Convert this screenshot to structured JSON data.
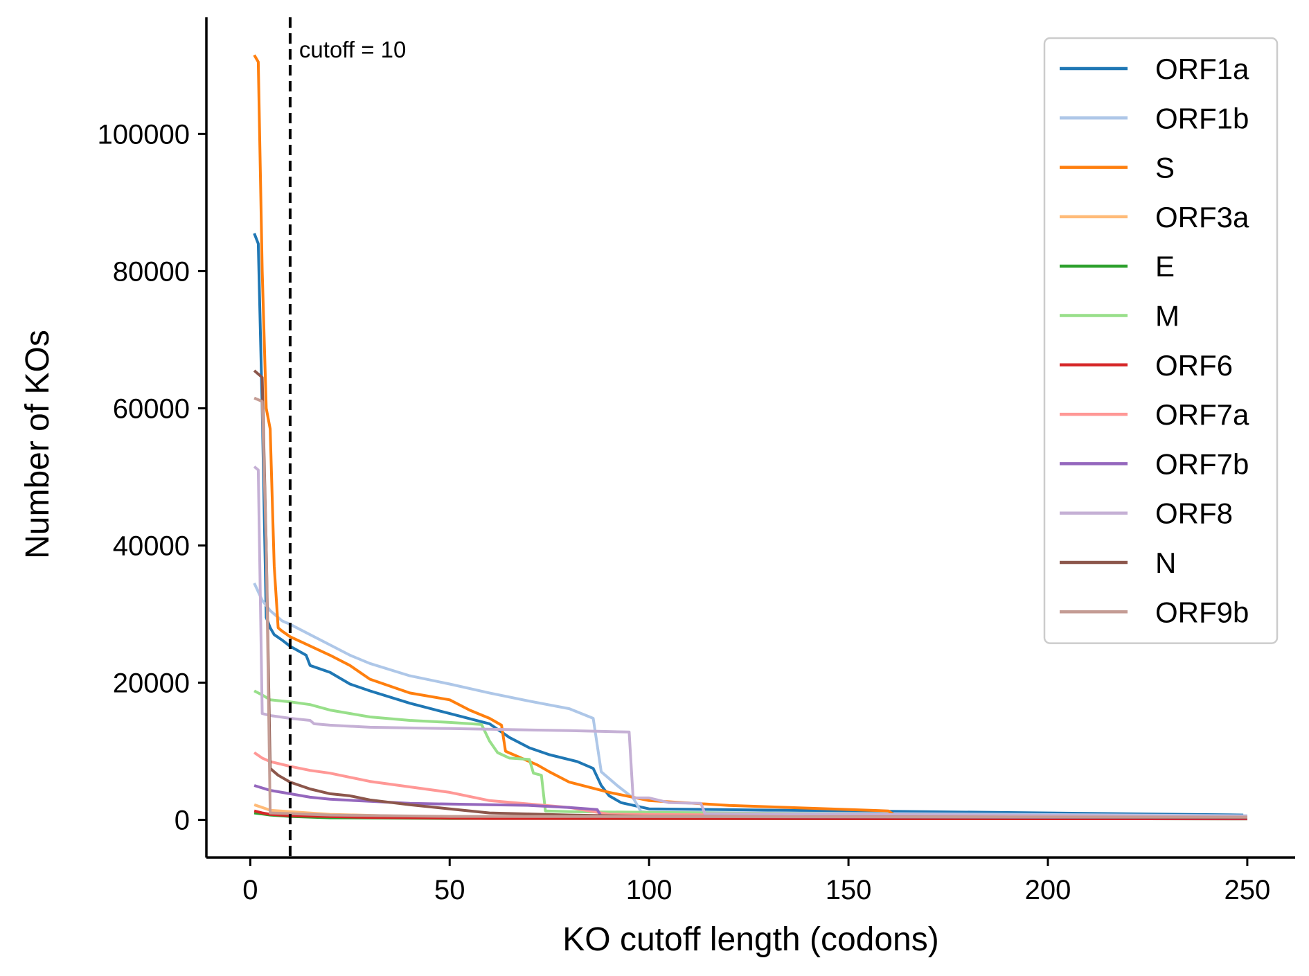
{
  "chart_data": {
    "type": "line",
    "title": "",
    "xlabel": "KO cutoff length (codons)",
    "ylabel": "Number of KOs",
    "xlim": [
      -11,
      262
    ],
    "ylim": [
      -5500,
      117000
    ],
    "xticks": [
      0,
      50,
      100,
      150,
      200,
      250
    ],
    "yticks": [
      0,
      20000,
      40000,
      60000,
      80000,
      100000
    ],
    "grid": false,
    "legend_position": "top-right",
    "annotation": {
      "x": 10,
      "label": "cutoff = 10",
      "style": "dashed-vertical-line",
      "color": "#000000"
    },
    "series": [
      {
        "name": "ORF1a",
        "color": "#1f77b4",
        "points": [
          [
            1,
            85500
          ],
          [
            2,
            84000
          ],
          [
            3,
            60000
          ],
          [
            4,
            29500
          ],
          [
            5,
            28000
          ],
          [
            6,
            27000
          ],
          [
            8,
            26200
          ],
          [
            10,
            25300
          ],
          [
            14,
            24000
          ],
          [
            15,
            22500
          ],
          [
            20,
            21500
          ],
          [
            25,
            19800
          ],
          [
            30,
            18800
          ],
          [
            40,
            17000
          ],
          [
            50,
            15500
          ],
          [
            60,
            14000
          ],
          [
            65,
            12000
          ],
          [
            70,
            10500
          ],
          [
            75,
            9500
          ],
          [
            82,
            8500
          ],
          [
            86,
            7500
          ],
          [
            88,
            5000
          ],
          [
            90,
            3500
          ],
          [
            93,
            2500
          ],
          [
            100,
            1600
          ],
          [
            150,
            1300
          ],
          [
            200,
            1000
          ],
          [
            249,
            700
          ]
        ]
      },
      {
        "name": "ORF1b",
        "color": "#aec7e8",
        "points": [
          [
            1,
            34500
          ],
          [
            3,
            32000
          ],
          [
            5,
            30500
          ],
          [
            8,
            29000
          ],
          [
            10,
            28500
          ],
          [
            15,
            27000
          ],
          [
            20,
            25500
          ],
          [
            25,
            24000
          ],
          [
            30,
            22800
          ],
          [
            40,
            21000
          ],
          [
            50,
            19800
          ],
          [
            60,
            18500
          ],
          [
            70,
            17300
          ],
          [
            80,
            16200
          ],
          [
            86,
            14800
          ],
          [
            88,
            7000
          ],
          [
            92,
            5000
          ],
          [
            96,
            3200
          ],
          [
            98,
            1200
          ],
          [
            100,
            1100
          ],
          [
            250,
            600
          ]
        ]
      },
      {
        "name": "S",
        "color": "#ff7f0e",
        "points": [
          [
            1,
            111500
          ],
          [
            2,
            110500
          ],
          [
            3,
            80000
          ],
          [
            4,
            60000
          ],
          [
            5,
            57000
          ],
          [
            6,
            37000
          ],
          [
            7,
            28000
          ],
          [
            8,
            27500
          ],
          [
            10,
            26700
          ],
          [
            20,
            24000
          ],
          [
            25,
            22500
          ],
          [
            30,
            20500
          ],
          [
            40,
            18500
          ],
          [
            50,
            17500
          ],
          [
            55,
            16000
          ],
          [
            60,
            14800
          ],
          [
            63,
            13800
          ],
          [
            64,
            10000
          ],
          [
            66,
            9500
          ],
          [
            72,
            8000
          ],
          [
            75,
            7000
          ],
          [
            80,
            5500
          ],
          [
            90,
            4000
          ],
          [
            100,
            2800
          ],
          [
            120,
            2100
          ],
          [
            160,
            1300
          ],
          [
            162,
            500
          ],
          [
            250,
            400
          ]
        ]
      },
      {
        "name": "ORF3a",
        "color": "#ffbb78",
        "points": [
          [
            1,
            2200
          ],
          [
            3,
            1800
          ],
          [
            5,
            1400
          ],
          [
            10,
            1200
          ],
          [
            20,
            800
          ],
          [
            40,
            500
          ],
          [
            100,
            350
          ],
          [
            250,
            250
          ]
        ]
      },
      {
        "name": "E",
        "color": "#2ca02c",
        "points": [
          [
            1,
            1000
          ],
          [
            5,
            700
          ],
          [
            10,
            500
          ],
          [
            20,
            300
          ],
          [
            50,
            200
          ],
          [
            250,
            150
          ]
        ]
      },
      {
        "name": "M",
        "color": "#98df8a",
        "points": [
          [
            1,
            18800
          ],
          [
            3,
            18200
          ],
          [
            5,
            17500
          ],
          [
            10,
            17200
          ],
          [
            15,
            16800
          ],
          [
            20,
            16000
          ],
          [
            30,
            15000
          ],
          [
            40,
            14500
          ],
          [
            50,
            14200
          ],
          [
            58,
            13900
          ],
          [
            60,
            11500
          ],
          [
            62,
            9800
          ],
          [
            65,
            9000
          ],
          [
            70,
            8800
          ],
          [
            71,
            6800
          ],
          [
            73,
            6500
          ],
          [
            74,
            1300
          ],
          [
            80,
            1200
          ],
          [
            250,
            300
          ]
        ]
      },
      {
        "name": "ORF6",
        "color": "#d62728",
        "points": [
          [
            1,
            1300
          ],
          [
            3,
            1000
          ],
          [
            5,
            800
          ],
          [
            10,
            600
          ],
          [
            30,
            350
          ],
          [
            60,
            200
          ],
          [
            250,
            150
          ]
        ]
      },
      {
        "name": "ORF7a",
        "color": "#ff9896",
        "points": [
          [
            1,
            9800
          ],
          [
            3,
            9000
          ],
          [
            5,
            8500
          ],
          [
            10,
            7800
          ],
          [
            15,
            7200
          ],
          [
            20,
            6800
          ],
          [
            30,
            5600
          ],
          [
            40,
            4800
          ],
          [
            50,
            4000
          ],
          [
            60,
            2800
          ],
          [
            70,
            2300
          ],
          [
            80,
            1800
          ],
          [
            90,
            800
          ],
          [
            250,
            400
          ]
        ]
      },
      {
        "name": "ORF7b",
        "color": "#9467bd",
        "points": [
          [
            1,
            5000
          ],
          [
            5,
            4300
          ],
          [
            10,
            3800
          ],
          [
            15,
            3300
          ],
          [
            20,
            3000
          ],
          [
            30,
            2700
          ],
          [
            40,
            2400
          ],
          [
            50,
            2300
          ],
          [
            60,
            2200
          ],
          [
            70,
            2100
          ],
          [
            80,
            1800
          ],
          [
            87,
            1500
          ],
          [
            88,
            500
          ],
          [
            250,
            300
          ]
        ]
      },
      {
        "name": "ORF8",
        "color": "#c5b0d5",
        "points": [
          [
            1,
            51500
          ],
          [
            2,
            51000
          ],
          [
            3,
            15500
          ],
          [
            5,
            15200
          ],
          [
            10,
            14800
          ],
          [
            15,
            14500
          ],
          [
            16,
            14000
          ],
          [
            20,
            13800
          ],
          [
            30,
            13500
          ],
          [
            50,
            13300
          ],
          [
            80,
            13000
          ],
          [
            95,
            12800
          ],
          [
            96,
            3200
          ],
          [
            100,
            3200
          ],
          [
            105,
            2500
          ],
          [
            113,
            2400
          ],
          [
            114,
            900
          ],
          [
            250,
            500
          ]
        ]
      },
      {
        "name": "N",
        "color": "#8c564b",
        "points": [
          [
            1,
            65500
          ],
          [
            3,
            64500
          ],
          [
            4,
            40000
          ],
          [
            5,
            7500
          ],
          [
            7,
            6500
          ],
          [
            10,
            5500
          ],
          [
            15,
            4500
          ],
          [
            20,
            3800
          ],
          [
            25,
            3500
          ],
          [
            30,
            2900
          ],
          [
            40,
            2200
          ],
          [
            50,
            1600
          ],
          [
            60,
            1000
          ],
          [
            70,
            850
          ],
          [
            80,
            700
          ],
          [
            100,
            500
          ],
          [
            250,
            350
          ]
        ]
      },
      {
        "name": "ORF9b",
        "color": "#c49c94",
        "points": [
          [
            1,
            61500
          ],
          [
            3,
            61000
          ],
          [
            4,
            40000
          ],
          [
            5,
            1000
          ],
          [
            10,
            900
          ],
          [
            20,
            700
          ],
          [
            50,
            500
          ],
          [
            250,
            400
          ]
        ]
      }
    ]
  }
}
